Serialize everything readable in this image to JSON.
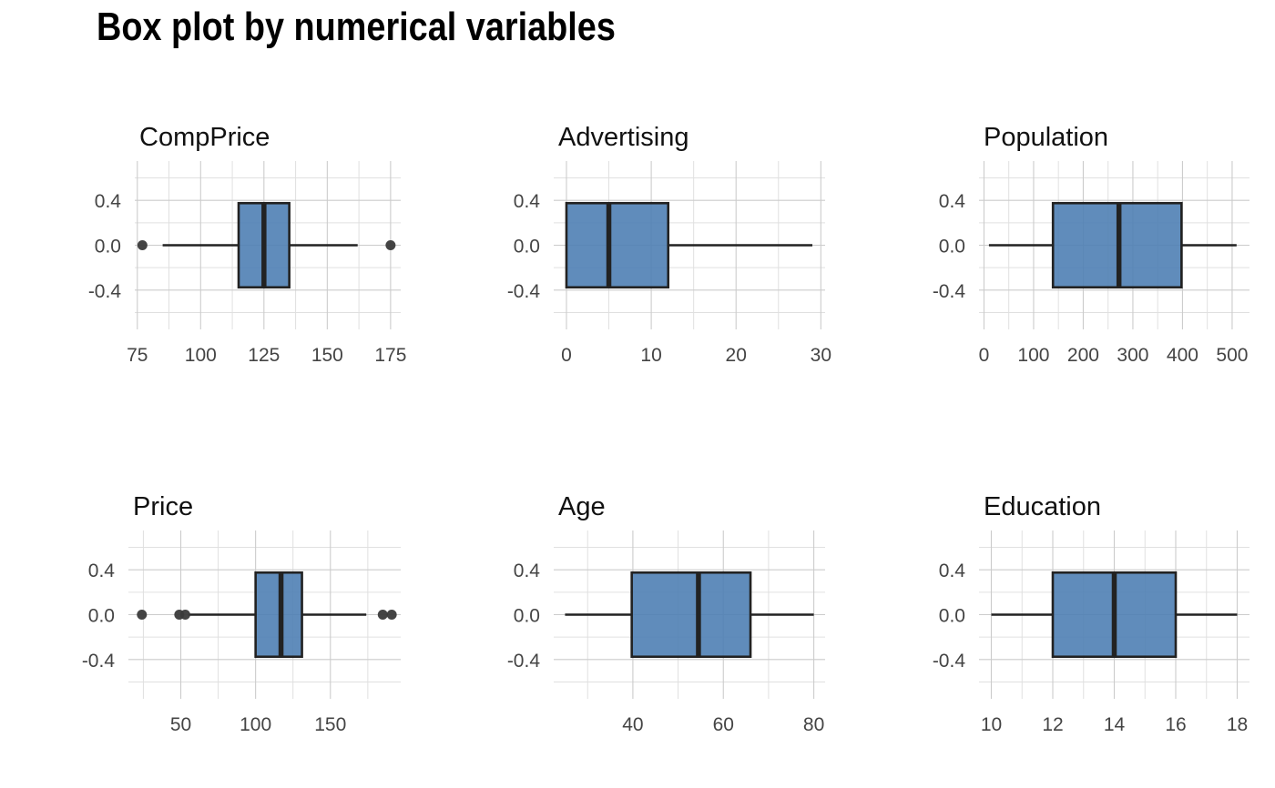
{
  "title": "Box plot by numerical variables",
  "colors": {
    "box_fill": "#4f7fb4",
    "box_stroke": "#222222",
    "outlier": "#3a3a3a"
  },
  "chart_data": [
    {
      "type": "box",
      "title": "CompPrice",
      "xlim": [
        74,
        179
      ],
      "ylim": [
        -0.75,
        0.75
      ],
      "yticks": [
        -0.4,
        0.0,
        0.4
      ],
      "ytick_labels": [
        "-0.4",
        "0.0",
        "0.4"
      ],
      "xticks": [
        75,
        100,
        125,
        150,
        175
      ],
      "xtick_labels": [
        "75",
        "100",
        "125",
        "150",
        "175"
      ],
      "whisker_low": 85,
      "q1": 115,
      "median": 125,
      "q3": 135,
      "whisker_high": 162,
      "outliers": [
        77,
        175
      ],
      "grid": true
    },
    {
      "type": "box",
      "title": "Advertising",
      "xlim": [
        -1.5,
        30.5
      ],
      "ylim": [
        -0.75,
        0.75
      ],
      "yticks": [
        -0.4,
        0.0,
        0.4
      ],
      "ytick_labels": [
        "-0.4",
        "0.0",
        "0.4"
      ],
      "xticks": [
        0,
        10,
        20,
        30
      ],
      "xtick_labels": [
        "0",
        "10",
        "20",
        "30"
      ],
      "whisker_low": 0,
      "q1": 0,
      "median": 5,
      "q3": 12,
      "whisker_high": 29,
      "outliers": [],
      "grid": true
    },
    {
      "type": "box",
      "title": "Population",
      "xlim": [
        -10,
        535
      ],
      "ylim": [
        -0.75,
        0.75
      ],
      "yticks": [
        -0.4,
        0.0,
        0.4
      ],
      "ytick_labels": [
        "-0.4",
        "0.0",
        "0.4"
      ],
      "xticks": [
        0,
        100,
        200,
        300,
        400,
        500
      ],
      "xtick_labels": [
        "0",
        "100",
        "200",
        "300",
        "400",
        "500"
      ],
      "whisker_low": 10,
      "q1": 139,
      "median": 272,
      "q3": 398,
      "whisker_high": 509,
      "outliers": [],
      "grid": true
    },
    {
      "type": "box",
      "title": "Price",
      "xlim": [
        15,
        197
      ],
      "ylim": [
        -0.75,
        0.75
      ],
      "yticks": [
        -0.4,
        0.0,
        0.4
      ],
      "ytick_labels": [
        "-0.4",
        "0.0",
        "0.4"
      ],
      "xticks": [
        50,
        100,
        150
      ],
      "xtick_labels": [
        "50",
        "100",
        "150"
      ],
      "whisker_low": 55,
      "q1": 100,
      "median": 117,
      "q3": 131,
      "whisker_high": 174,
      "outliers": [
        24,
        49,
        53,
        185,
        191
      ],
      "grid": true
    },
    {
      "type": "box",
      "title": "Age",
      "xlim": [
        22.5,
        82.5
      ],
      "ylim": [
        -0.75,
        0.75
      ],
      "yticks": [
        -0.4,
        0.0,
        0.4
      ],
      "ytick_labels": [
        "-0.4",
        "0.0",
        "0.4"
      ],
      "xticks": [
        40,
        60,
        80
      ],
      "xtick_labels": [
        "40",
        "60",
        "80"
      ],
      "whisker_low": 25,
      "q1": 39.75,
      "median": 54.5,
      "q3": 66,
      "whisker_high": 80,
      "outliers": [],
      "grid": true
    },
    {
      "type": "box",
      "title": "Education",
      "xlim": [
        9.6,
        18.4
      ],
      "ylim": [
        -0.75,
        0.75
      ],
      "yticks": [
        -0.4,
        0.0,
        0.4
      ],
      "ytick_labels": [
        "-0.4",
        "0.0",
        "0.4"
      ],
      "xticks": [
        10,
        12,
        14,
        16,
        18
      ],
      "xtick_labels": [
        "10",
        "12",
        "14",
        "16",
        "18"
      ],
      "whisker_low": 10,
      "q1": 12,
      "median": 14,
      "q3": 16,
      "whisker_high": 18,
      "outliers": [],
      "grid": true
    }
  ]
}
